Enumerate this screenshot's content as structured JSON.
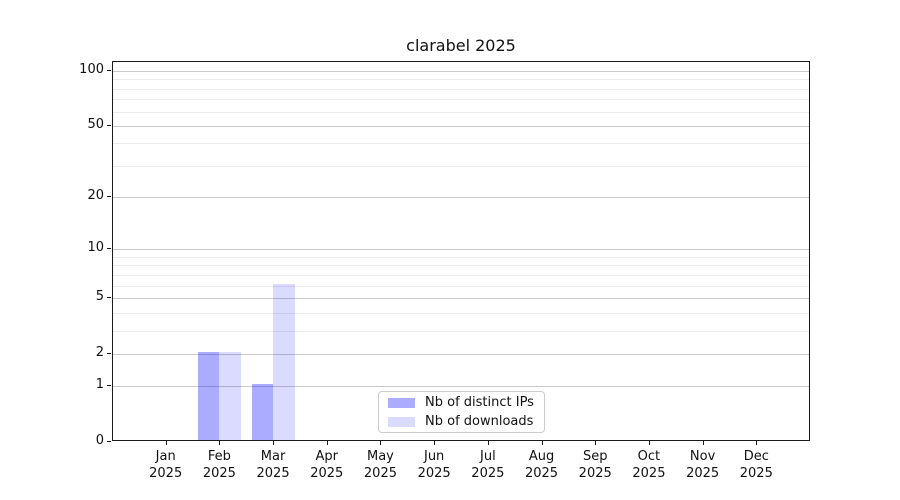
{
  "chart_data": {
    "type": "bar",
    "title": "clarabel 2025",
    "x_categories": [
      "Jan",
      "Feb",
      "Mar",
      "Apr",
      "May",
      "Jun",
      "Jul",
      "Aug",
      "Sep",
      "Oct",
      "Nov",
      "Dec"
    ],
    "x_year": "2025",
    "series": [
      {
        "name": "Nb of distinct IPs",
        "color": "rgba(0,0,255,0.33)",
        "values": [
          0,
          2,
          1,
          0,
          0,
          0,
          0,
          0,
          0,
          0,
          0,
          0
        ]
      },
      {
        "name": "Nb of downloads",
        "color": "rgba(0,0,255,0.14)",
        "values": [
          0,
          2,
          6,
          0,
          0,
          0,
          0,
          0,
          0,
          0,
          0,
          0
        ]
      }
    ],
    "yscale": "log10(value+1)",
    "yticks": [
      0,
      1,
      2,
      5,
      10,
      20,
      50,
      100
    ],
    "yticks_minor": [
      3,
      4,
      6,
      7,
      8,
      9,
      30,
      40,
      60,
      70,
      80,
      90
    ],
    "ylim": [
      0,
      112
    ],
    "xlabel": "",
    "ylabel": "",
    "grid": "on",
    "legend": {
      "position": "lower center",
      "entries": [
        "Nb of distinct IPs",
        "Nb of downloads"
      ]
    },
    "colors": {
      "major_grid": "#c9c9c9",
      "minor_grid": "#ebebeb",
      "axis": "#1a1a1a",
      "text": "#111111",
      "background": "#ffffff"
    }
  }
}
